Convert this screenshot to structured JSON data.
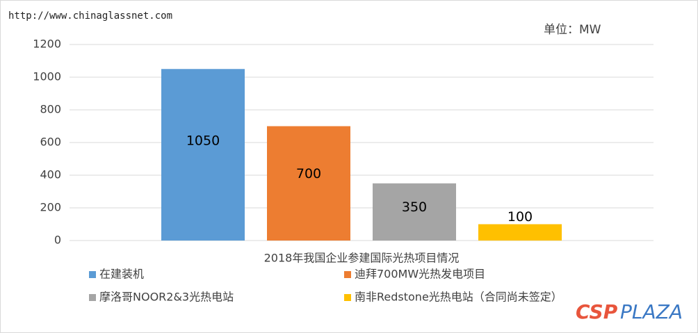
{
  "chart_data": {
    "type": "bar",
    "watermark": "http://www.chinaglassnet.com",
    "unit_label": "单位：MW",
    "logo": [
      "CSP",
      "PLAZA"
    ],
    "categories": [
      "2018年我国企业参建国际光热项目情况"
    ],
    "series": [
      {
        "name": "在建装机",
        "color": "#5b9bd5",
        "values": [
          1050
        ]
      },
      {
        "name": "迪拜700MW光热发电项目",
        "color": "#ed7d31",
        "values": [
          700
        ]
      },
      {
        "name": "摩洛哥NOOR2&3光热电站",
        "color": "#a5a5a5",
        "values": [
          350
        ]
      },
      {
        "name": "南非Redstone光热电站（合同尚未签定）",
        "color": "#ffc000",
        "values": [
          100
        ]
      }
    ],
    "ylim": [
      0,
      1200
    ],
    "yticks": [
      0,
      200,
      400,
      600,
      800,
      1000,
      1200
    ],
    "grid": true
  }
}
